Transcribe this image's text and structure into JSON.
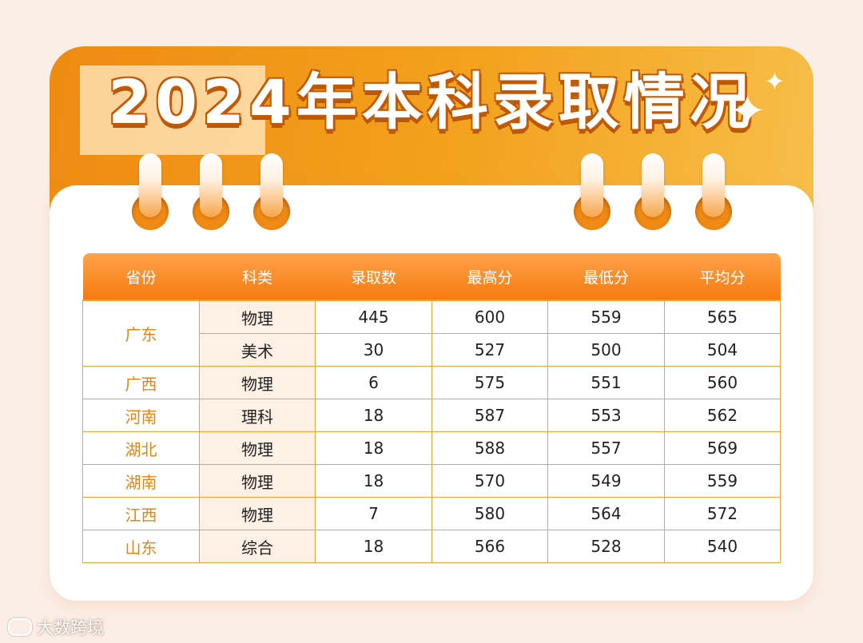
{
  "title": "2024年本科录取情况",
  "table": {
    "headers": [
      "省份",
      "科类",
      "录取数",
      "最高分",
      "最低分",
      "平均分"
    ],
    "rows": [
      {
        "province": "广东",
        "rowspan": 2,
        "category": "物理",
        "admitted": "445",
        "max": "600",
        "min": "559",
        "avg": "565"
      },
      {
        "province": null,
        "category": "美术",
        "admitted": "30",
        "max": "527",
        "min": "500",
        "avg": "504"
      },
      {
        "province": "广西",
        "rowspan": 1,
        "category": "物理",
        "admitted": "6",
        "max": "575",
        "min": "551",
        "avg": "560"
      },
      {
        "province": "河南",
        "rowspan": 1,
        "category": "理科",
        "admitted": "18",
        "max": "587",
        "min": "553",
        "avg": "562"
      },
      {
        "province": "湖北",
        "rowspan": 1,
        "category": "物理",
        "admitted": "18",
        "max": "588",
        "min": "557",
        "avg": "569"
      },
      {
        "province": "湖南",
        "rowspan": 1,
        "category": "物理",
        "admitted": "18",
        "max": "570",
        "min": "549",
        "avg": "559"
      },
      {
        "province": "江西",
        "rowspan": 1,
        "category": "物理",
        "admitted": "7",
        "max": "580",
        "min": "564",
        "avg": "572"
      },
      {
        "province": "山东",
        "rowspan": 1,
        "category": "综合",
        "admitted": "18",
        "max": "566",
        "min": "528",
        "avg": "540"
      }
    ]
  },
  "watermark": "大数跨境",
  "colors": {
    "accent": "#f57a10",
    "province_text": "#e48513",
    "border": "#f0a23a"
  },
  "icons": [
    "sparkle-icon",
    "binder-ring-icon",
    "watermark-logo-icon"
  ]
}
